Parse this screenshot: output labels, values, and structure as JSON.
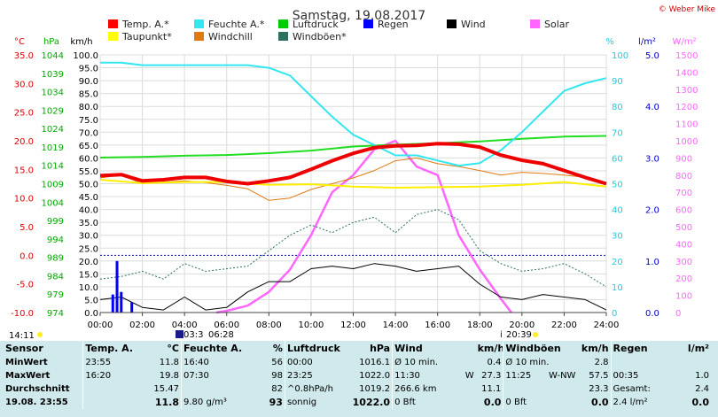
{
  "title": "Samstag, 19.08.2017",
  "copyright": "© Weber Mike",
  "legend": [
    {
      "name": "Temp. A.*",
      "color": "#ff0000"
    },
    {
      "name": "Feuchte A.*",
      "color": "#33e6f0"
    },
    {
      "name": "Luftdruck",
      "color": "#00cc00"
    },
    {
      "name": "Regen",
      "color": "#0000ff"
    },
    {
      "name": "Wind",
      "color": "#000000"
    },
    {
      "name": "Solar",
      "color": "#ff66ff"
    },
    {
      "name": "Taupunkt*",
      "color": "#ffff00"
    },
    {
      "name": "Windchill",
      "color": "#e07a10"
    },
    {
      "name": "Windböen*",
      "color": "#2f6f5f"
    }
  ],
  "axes": {
    "temp_unit": "°C",
    "hpa_unit": "hPa",
    "kmh_unit": "km/h",
    "pct_unit": "%",
    "rain_unit": "l/m²",
    "solar_unit": "W/m²",
    "temp_ticks": [
      "35.0",
      "30.0",
      "25.0",
      "20.0",
      "15.0",
      "10.0",
      "5.0",
      "0.0",
      "-5.0",
      "-10.0"
    ],
    "hpa_ticks": [
      "1044",
      "1039",
      "1034",
      "1029",
      "1024",
      "1019",
      "1014",
      "1009",
      "1004",
      "999",
      "994",
      "989",
      "984",
      "979",
      "974"
    ],
    "kmh_ticks": [
      "100.0",
      "95.0",
      "90.0",
      "85.0",
      "80.0",
      "75.0",
      "70.0",
      "65.0",
      "60.0",
      "55.0",
      "50.0",
      "45.0",
      "40.0",
      "35.0",
      "30.0",
      "25.0",
      "20.0",
      "15.0",
      "10.0",
      "5.0",
      "0.0"
    ],
    "pct_ticks": [
      "100",
      "90",
      "80",
      "70",
      "60",
      "50",
      "40",
      "30",
      "20",
      "10",
      "0"
    ],
    "rain_ticks": [
      "5.0",
      "4.0",
      "3.0",
      "2.0",
      "1.0",
      "0.0"
    ],
    "solar_ticks": [
      "1500",
      "1400",
      "1300",
      "1200",
      "1100",
      "1000",
      "900",
      "800",
      "700",
      "600",
      "500",
      "400",
      "300",
      "200",
      "100",
      "0"
    ],
    "x_ticks": [
      "00:00",
      "02:00",
      "04:00",
      "06:00",
      "08:00",
      "10:00",
      "12:00",
      "14:00",
      "16:00",
      "18:00",
      "20:00",
      "22:00",
      "24:00"
    ]
  },
  "sun": {
    "left_time": "14:11",
    "rise_label": "03:3",
    "rise_time": "06:28",
    "set_time": "20:39"
  },
  "chart_data": {
    "type": "line",
    "x_range": [
      0,
      24
    ],
    "x_unit": "hours",
    "series": [
      {
        "name": "Temp. A.*",
        "unit": "°C",
        "x": [
          0,
          1,
          2,
          3,
          4,
          5,
          6,
          7,
          8,
          9,
          10,
          11,
          12,
          13,
          14,
          15,
          16,
          17,
          18,
          19,
          20,
          21,
          22,
          23,
          24
        ],
        "values": [
          13.9,
          14.1,
          13.0,
          13.2,
          13.6,
          13.6,
          12.9,
          12.5,
          13.0,
          13.6,
          15.0,
          16.5,
          17.8,
          18.8,
          19.1,
          19.2,
          19.5,
          19.4,
          18.9,
          17.5,
          16.6,
          16.0,
          14.8,
          13.6,
          12.5
        ]
      },
      {
        "name": "Feuchte A.*",
        "unit": "%",
        "x": [
          0,
          1,
          2,
          3,
          4,
          5,
          6,
          7,
          8,
          9,
          10,
          11,
          12,
          13,
          14,
          15,
          16,
          17,
          18,
          19,
          20,
          21,
          22,
          23,
          24
        ],
        "values": [
          97,
          97,
          96,
          96,
          96,
          96,
          96,
          96,
          95,
          92,
          84,
          76,
          69,
          65,
          61,
          61,
          59,
          57,
          58,
          63,
          70,
          78,
          86,
          89,
          91
        ]
      },
      {
        "name": "Luftdruck",
        "unit": "hPa",
        "x": [
          0,
          2,
          4,
          6,
          8,
          10,
          12,
          14,
          16,
          18,
          20,
          22,
          24
        ],
        "values": [
          1016.1,
          1016.3,
          1016.6,
          1016.8,
          1017.3,
          1018.0,
          1019.1,
          1019.6,
          1020.0,
          1020.5,
          1021.2,
          1021.8,
          1022.0
        ]
      },
      {
        "name": "Taupunkt*",
        "unit": "°C",
        "x": [
          0,
          2,
          4,
          6,
          8,
          10,
          12,
          14,
          16,
          18,
          20,
          22,
          24
        ],
        "values": [
          13.2,
          12.6,
          12.8,
          12.8,
          12.3,
          12.4,
          12.0,
          11.8,
          11.9,
          12.0,
          12.3,
          12.8,
          12.0
        ]
      },
      {
        "name": "Windchill",
        "unit": "°C",
        "x": [
          0,
          1,
          2,
          3,
          4,
          5,
          6,
          7,
          8,
          9,
          10,
          11,
          12,
          13,
          14,
          15,
          16,
          17,
          18,
          19,
          20,
          21,
          22,
          23,
          24
        ],
        "values": [
          13.5,
          14.0,
          12.5,
          12.8,
          13.0,
          12.7,
          12.2,
          11.6,
          9.6,
          10.0,
          11.5,
          12.5,
          13.5,
          14.8,
          16.5,
          17.0,
          16.0,
          15.5,
          14.8,
          14.0,
          14.5,
          14.3,
          14.0,
          13.6,
          12.5
        ]
      },
      {
        "name": "Windböen*",
        "unit": "km/h",
        "x": [
          0,
          1,
          2,
          3,
          4,
          5,
          6,
          7,
          8,
          9,
          10,
          11,
          12,
          13,
          14,
          15,
          16,
          17,
          18,
          19,
          20,
          21,
          22,
          23,
          24
        ],
        "values": [
          13,
          14,
          16,
          13,
          19,
          16,
          17,
          18,
          24,
          30,
          34,
          31,
          35,
          37,
          31,
          38,
          40,
          36,
          24,
          19,
          16,
          17,
          19,
          15,
          10
        ]
      },
      {
        "name": "Wind",
        "unit": "km/h",
        "x": [
          0,
          1,
          2,
          3,
          4,
          5,
          6,
          7,
          8,
          9,
          10,
          11,
          12,
          13,
          14,
          15,
          16,
          17,
          18,
          19,
          20,
          21,
          22,
          23,
          24
        ],
        "values": [
          5,
          6,
          2,
          1,
          6,
          1,
          2,
          8,
          12,
          12,
          17,
          18,
          17,
          19,
          18,
          16,
          17,
          18,
          11,
          6,
          5,
          7,
          6,
          5,
          1
        ]
      },
      {
        "name": "Solar",
        "unit": "W/m²",
        "x": [
          5.5,
          6,
          7,
          8,
          9,
          10,
          11,
          12,
          13,
          14,
          15,
          16,
          17,
          18,
          19,
          19.5
        ],
        "values": [
          0,
          10,
          40,
          120,
          250,
          450,
          700,
          800,
          950,
          1000,
          850,
          800,
          450,
          250,
          80,
          0
        ]
      },
      {
        "name": "Regen",
        "unit": "l/m²",
        "x": [
          0.6,
          0.8,
          1.0,
          1.5
        ],
        "values": [
          0.35,
          1.0,
          0.4,
          0.2
        ]
      }
    ]
  },
  "stats": {
    "headers": {
      "sensor": "Sensor",
      "temp": "Temp. A.",
      "temp_unit": "°C",
      "hum": "Feuchte A.",
      "hum_unit": "%",
      "press": "Luftdruck",
      "press_unit": "hPa",
      "wind": "Wind",
      "wind_unit": "km/h",
      "gust": "Windböen",
      "gust_unit": "km/h",
      "rain": "Regen",
      "rain_unit": "l/m²"
    },
    "rows": [
      {
        "label": "MinWert",
        "temp_time": "23:55",
        "temp_val": "11.8",
        "hum_time": "16:40",
        "hum_val": "56",
        "press_time": "00:00",
        "press_val": "1016.1",
        "wind_text": "Ø 10 min.",
        "wind_val": "0.4",
        "gust_text": "Ø 10 min.",
        "gust_val": "2.8",
        "rain_text": "",
        "rain_val": ""
      },
      {
        "label": "MaxWert",
        "temp_time": "16:20",
        "temp_val": "19.8",
        "hum_time": "07:30",
        "hum_val": "98",
        "press_time": "23:25",
        "press_val": "1022.0",
        "wind_text": "11:30",
        "wind_dir": "W",
        "wind_val": "27.3",
        "gust_text": "11:25",
        "gust_dir": "W-NW",
        "gust_val": "57.5",
        "rain_text": "00:35",
        "rain_val": "1.0"
      },
      {
        "label": "Durchschnitt",
        "temp_time": "",
        "temp_val": "15.47",
        "hum_time": "",
        "hum_val": "82",
        "press_time": "^0.8hPa/h",
        "press_val": "1019.2",
        "wind_text": "266.6 km",
        "wind_val": "11.1",
        "gust_text": "",
        "gust_val": "23.3",
        "rain_text": "Gesamt:",
        "rain_val": "2.4"
      },
      {
        "label": "19.08. 23:55",
        "temp_time": "",
        "temp_val": "11.8",
        "hum_time": "9.80 g/m³",
        "hum_val": "93",
        "press_time": "sonnig",
        "press_val": "1022.0",
        "wind_text": "0 Bft",
        "wind_val": "0.0",
        "gust_text": "0 Bft",
        "gust_val": "0.0",
        "rain_text": "2.4 l/m²",
        "rain_val": "0.0"
      }
    ]
  }
}
